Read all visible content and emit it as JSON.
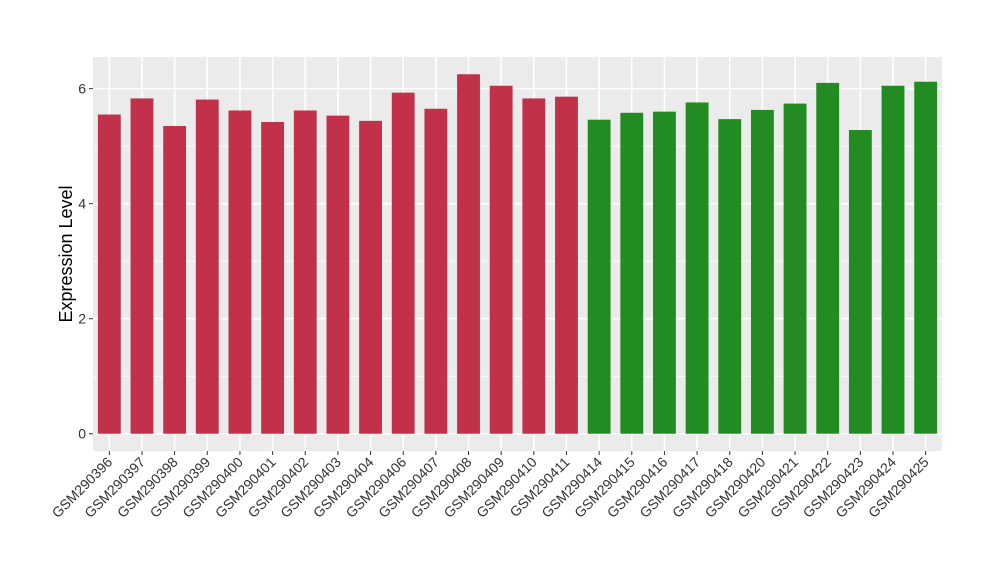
{
  "chart_data": {
    "type": "bar",
    "ylabel": "Expression Level",
    "xlabel": "",
    "ylim": [
      -0.3,
      6.55
    ],
    "yticks": [
      0,
      2,
      4,
      6
    ],
    "grid": true,
    "legend": "none",
    "colors": {
      "group1": "#C1314A",
      "group2": "#228B22",
      "panel": "#EBEBEB",
      "grid": "#FFFFFF",
      "text": "#333333"
    },
    "categories": [
      "GSM290396",
      "GSM290397",
      "GSM290398",
      "GSM290399",
      "GSM290400",
      "GSM290401",
      "GSM290402",
      "GSM290403",
      "GSM290404",
      "GSM290406",
      "GSM290407",
      "GSM290408",
      "GSM290409",
      "GSM290410",
      "GSM290411",
      "GSM290414",
      "GSM290415",
      "GSM290416",
      "GSM290417",
      "GSM290418",
      "GSM290420",
      "GSM290421",
      "GSM290422",
      "GSM290423",
      "GSM290424",
      "GSM290425"
    ],
    "values": [
      5.55,
      5.83,
      5.35,
      5.81,
      5.62,
      5.42,
      5.62,
      5.53,
      5.44,
      5.93,
      5.65,
      6.25,
      6.05,
      5.83,
      5.86,
      5.46,
      5.58,
      5.6,
      5.76,
      5.47,
      5.63,
      5.74,
      6.1,
      5.28,
      6.05,
      6.12
    ],
    "groups": [
      1,
      1,
      1,
      1,
      1,
      1,
      1,
      1,
      1,
      1,
      1,
      1,
      1,
      1,
      1,
      2,
      2,
      2,
      2,
      2,
      2,
      2,
      2,
      2,
      2,
      2
    ]
  }
}
